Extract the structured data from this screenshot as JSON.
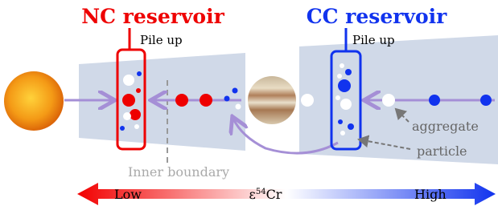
{
  "labels": {
    "nc_reservoir": "NC reservoir",
    "nc_pile_up": "Pile up",
    "cc_reservoir": "CC reservoir",
    "cc_pile_up": "Pile up",
    "aggregate": "aggregate",
    "particle": "particle",
    "inner_boundary": "Inner boundary",
    "low": "Low",
    "epsilon": "ε",
    "epsilon_sup": "54",
    "epsilon_element": "Cr",
    "high": "High"
  }
}
